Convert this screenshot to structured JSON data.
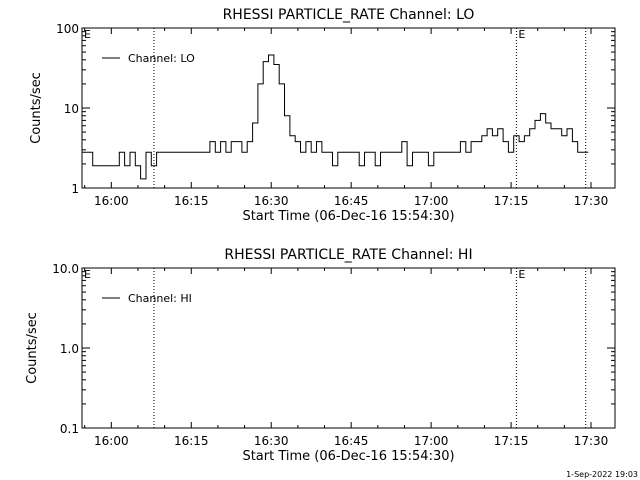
{
  "timestamp": "1-Sep-2022 19:03",
  "chart_data": [
    {
      "type": "line",
      "title": "RHESSI PARTICLE_RATE Channel: LO",
      "xlabel": "Start Time (06-Dec-16 15:54:30)",
      "ylabel": "Counts/sec",
      "yscale": "log",
      "ylim": [
        1,
        100
      ],
      "xlim": [
        "15:54:30",
        "17:34:30"
      ],
      "x_ticks": [
        "16:00",
        "16:15",
        "16:30",
        "16:45",
        "17:00",
        "17:15",
        "17:30"
      ],
      "y_ticks": [
        "1",
        "10",
        "100"
      ],
      "legend": {
        "placement": "top-left",
        "entries": [
          "Channel: LO"
        ]
      },
      "vertical_markers": [
        {
          "time": "16:08",
          "label": ""
        },
        {
          "time": "17:16",
          "label": "E"
        },
        {
          "time": "17:29",
          "label": ""
        }
      ],
      "corner_labels": [
        "E"
      ],
      "series": [
        {
          "name": "Channel: LO",
          "x": [
            "15:55",
            "15:56",
            "15:57",
            "15:58",
            "15:59",
            "16:00",
            "16:01",
            "16:02",
            "16:03",
            "16:04",
            "16:05",
            "16:06",
            "16:07",
            "16:08",
            "16:09",
            "16:10",
            "16:11",
            "16:12",
            "16:13",
            "16:14",
            "16:15",
            "16:16",
            "16:17",
            "16:18",
            "16:19",
            "16:20",
            "16:21",
            "16:22",
            "16:23",
            "16:24",
            "16:25",
            "16:26",
            "16:27",
            "16:28",
            "16:29",
            "16:30",
            "16:31",
            "16:32",
            "16:33",
            "16:34",
            "16:35",
            "16:36",
            "16:37",
            "16:38",
            "16:39",
            "16:40",
            "16:41",
            "16:42",
            "16:43",
            "16:44",
            "16:45",
            "16:46",
            "16:47",
            "16:48",
            "16:49",
            "16:50",
            "16:51",
            "16:52",
            "16:53",
            "16:54",
            "16:55",
            "16:56",
            "16:57",
            "16:58",
            "16:59",
            "17:00",
            "17:01",
            "17:02",
            "17:03",
            "17:04",
            "17:05",
            "17:06",
            "17:07",
            "17:08",
            "17:09",
            "17:10",
            "17:11",
            "17:12",
            "17:13",
            "17:14",
            "17:15",
            "17:16",
            "17:17",
            "17:18",
            "17:19",
            "17:20",
            "17:21",
            "17:22",
            "17:23",
            "17:24",
            "17:25",
            "17:26",
            "17:27",
            "17:28",
            "17:29"
          ],
          "values": [
            2.8,
            2.8,
            1.9,
            1.9,
            1.9,
            1.9,
            1.9,
            2.8,
            1.9,
            2.8,
            1.9,
            1.3,
            2.8,
            1.9,
            2.8,
            2.8,
            2.8,
            2.8,
            2.8,
            2.8,
            2.8,
            2.8,
            2.8,
            2.8,
            3.8,
            2.8,
            3.8,
            2.8,
            3.8,
            3.8,
            2.8,
            3.8,
            6.5,
            20,
            38,
            46,
            35,
            20,
            8,
            4.5,
            3.8,
            2.8,
            3.8,
            2.8,
            3.8,
            2.8,
            2.8,
            1.9,
            2.8,
            2.8,
            2.8,
            2.8,
            1.9,
            2.8,
            2.8,
            1.9,
            2.8,
            2.8,
            2.8,
            2.8,
            3.8,
            1.9,
            2.8,
            2.8,
            2.8,
            1.9,
            2.8,
            2.8,
            2.8,
            2.8,
            2.8,
            3.8,
            2.8,
            3.8,
            3.8,
            4.5,
            5.5,
            4.5,
            5.5,
            3.8,
            2.8,
            4.5,
            3.8,
            4.5,
            5.5,
            7,
            8.5,
            6.5,
            5.5,
            5.5,
            4.5,
            5.5,
            3.8,
            2.8,
            2.8
          ]
        }
      ]
    },
    {
      "type": "line",
      "title": "RHESSI PARTICLE_RATE Channel: HI",
      "xlabel": "Start Time (06-Dec-16 15:54:30)",
      "ylabel": "Counts/sec",
      "yscale": "log",
      "ylim": [
        0.1,
        10
      ],
      "xlim": [
        "15:54:30",
        "17:34:30"
      ],
      "x_ticks": [
        "16:00",
        "16:15",
        "16:30",
        "16:45",
        "17:00",
        "17:15",
        "17:30"
      ],
      "y_ticks": [
        "0.1",
        "1.0",
        "10.0"
      ],
      "legend": {
        "placement": "top-left",
        "entries": [
          "Channel: HI"
        ]
      },
      "vertical_markers": [
        {
          "time": "16:08",
          "label": ""
        },
        {
          "time": "17:16",
          "label": "E"
        },
        {
          "time": "17:29",
          "label": ""
        }
      ],
      "corner_labels": [
        "E"
      ],
      "series": [
        {
          "name": "Channel: HI",
          "x": [],
          "values": []
        }
      ]
    }
  ]
}
